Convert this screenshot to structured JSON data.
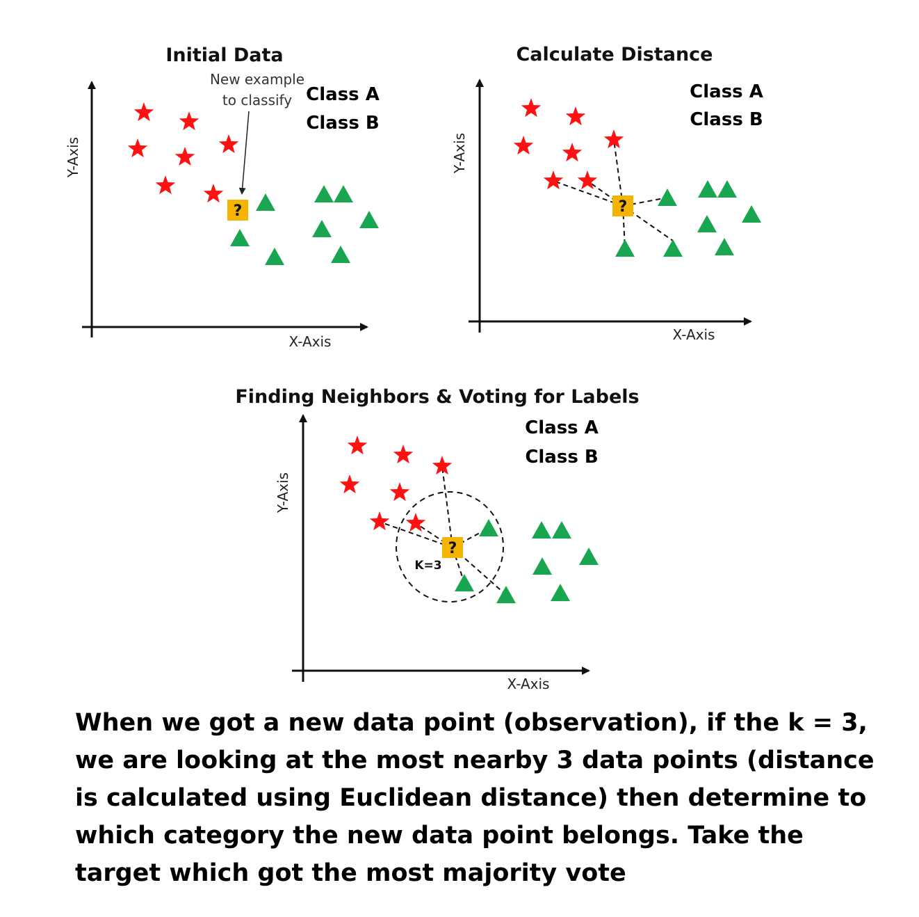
{
  "colors": {
    "class_a": "#ff1111",
    "class_b": "#1aa650",
    "query": "#f5b400",
    "axis": "#111111"
  },
  "icons": {
    "class_a_marker": "star",
    "class_b_marker": "triangle",
    "query_marker": "square-question"
  },
  "legend": {
    "class_a": "Class A",
    "class_b": "Class B"
  },
  "axes": {
    "x": "X-Axis",
    "y": "Y-Axis"
  },
  "query_symbol": "?",
  "panels": [
    {
      "title": "Initial Data",
      "annotation_line1": "New example",
      "annotation_line2": "to classify"
    },
    {
      "title": "Calculate Distance"
    },
    {
      "title": "Finding Neighbors & Voting for Labels",
      "k_label": "K=3"
    }
  ],
  "caption": "When we got a new data point (observation), if the k = 3, we are looking at the most nearby 3 data points (distance is calculated using Euclidean distance) then determine to which category the new data point belongs. Take the target which got the most majority vote"
}
